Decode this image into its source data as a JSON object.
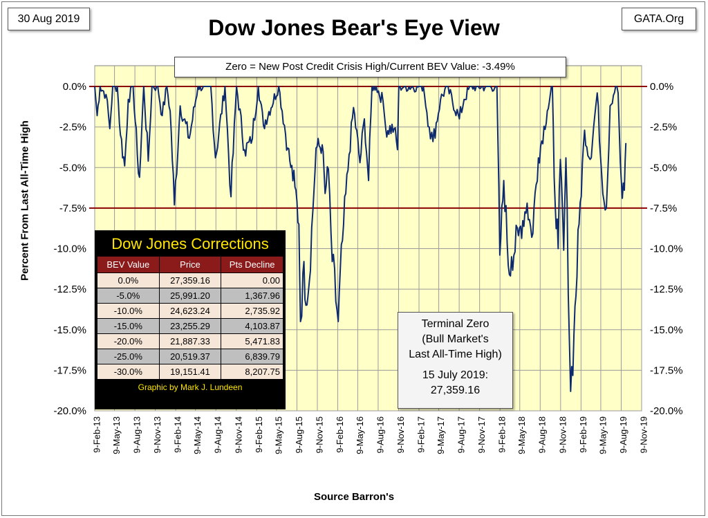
{
  "header": {
    "date": "30 Aug 2019",
    "source": "GATA.Org",
    "title": "Dow Jones Bear's Eye View",
    "subtitle": "Zero = New Post Credit Crisis High/Current BEV Value:  -3.49%"
  },
  "corrections_table": {
    "title": "Dow Jones Corrections",
    "columns": [
      "BEV Value",
      "Price",
      "Pts Decline"
    ],
    "rows": [
      [
        "0.0%",
        "27,359.16",
        "0.00"
      ],
      [
        "-5.0%",
        "25,991.20",
        "1,367.96"
      ],
      [
        "-10.0%",
        "24,623.24",
        "2,735.92"
      ],
      [
        "-15.0%",
        "23,255.29",
        "4,103.87"
      ],
      [
        "-20.0%",
        "21,887.33",
        "5,471.83"
      ],
      [
        "-25.0%",
        "20,519.37",
        "6,839.79"
      ],
      [
        "-30.0%",
        "19,151.41",
        "8,207.75"
      ]
    ],
    "credit": "Graphic by Mark J. Lundeen"
  },
  "terminal_box": {
    "lines": [
      "Terminal Zero",
      "(Bull Market's",
      "Last All-Time High)",
      "15 July 2019:",
      "27,359.16"
    ]
  },
  "chart_data": {
    "type": "line",
    "title": "Dow Jones Bear's Eye View",
    "xlabel": "Source Barron's",
    "ylabel": "Percent From Last All-Time High",
    "ylim": [
      -20,
      0
    ],
    "yticks": [
      "0.0%",
      "-2.5%",
      "-5.0%",
      "-7.5%",
      "-10.0%",
      "-12.5%",
      "-15.0%",
      "-17.5%",
      "-20.0%"
    ],
    "xlim": [
      "2013-02-09",
      "2019-11-09"
    ],
    "xticks": [
      "9-Feb-13",
      "9-May-13",
      "9-Aug-13",
      "9-Nov-13",
      "9-Feb-14",
      "9-May-14",
      "9-Aug-14",
      "9-Nov-14",
      "9-Feb-15",
      "9-May-15",
      "9-Aug-15",
      "9-Nov-15",
      "9-Feb-16",
      "9-May-16",
      "9-Aug-16",
      "9-Nov-16",
      "9-Feb-17",
      "9-May-17",
      "9-Aug-17",
      "9-Nov-17",
      "9-Feb-18",
      "9-May-18",
      "9-Aug-18",
      "9-Nov-18",
      "9-Feb-19",
      "9-May-19",
      "9-Aug-19",
      "9-Nov-19"
    ],
    "reference_lines": [
      0,
      -7.5
    ],
    "grid": true,
    "colors": {
      "line": "#0d2a6e",
      "reference": "#8b0000",
      "plot_bg": "#ffffc8",
      "grid": "#9a9a9a"
    },
    "series": [
      {
        "points": [
          [
            "2013-02-09",
            0
          ],
          [
            "2013-02-20",
            -1.8
          ],
          [
            "2013-03-05",
            0
          ],
          [
            "2013-04-01",
            -0.5
          ],
          [
            "2013-04-18",
            -2.6
          ],
          [
            "2013-05-01",
            0
          ],
          [
            "2013-05-22",
            0
          ],
          [
            "2013-06-05",
            -3
          ],
          [
            "2013-06-24",
            -4.9
          ],
          [
            "2013-07-10",
            -0.8
          ],
          [
            "2013-08-01",
            0
          ],
          [
            "2013-08-20",
            -4.2
          ],
          [
            "2013-08-30",
            -5.6
          ],
          [
            "2013-09-18",
            0
          ],
          [
            "2013-10-08",
            -4.6
          ],
          [
            "2013-10-25",
            0
          ],
          [
            "2013-11-20",
            0
          ],
          [
            "2013-12-10",
            -1.8
          ],
          [
            "2013-12-31",
            0
          ],
          [
            "2014-01-15",
            -1.5
          ],
          [
            "2014-02-03",
            -7.3
          ],
          [
            "2014-03-01",
            -1.2
          ],
          [
            "2014-04-11",
            -3.2
          ],
          [
            "2014-05-20",
            0
          ],
          [
            "2014-07-17",
            0
          ],
          [
            "2014-08-07",
            -4.4
          ],
          [
            "2014-09-19",
            0
          ],
          [
            "2014-10-16",
            -6.8
          ],
          [
            "2014-11-10",
            0
          ],
          [
            "2014-12-16",
            -3.9
          ],
          [
            "2015-01-15",
            -3.5
          ],
          [
            "2015-02-16",
            0
          ],
          [
            "2015-03-11",
            -2.4
          ],
          [
            "2015-05-19",
            0
          ],
          [
            "2015-06-29",
            -3.8
          ],
          [
            "2015-07-08",
            -4.6
          ],
          [
            "2015-07-31",
            -6.2
          ],
          [
            "2015-08-18",
            -8.5
          ],
          [
            "2015-08-25",
            -14.5
          ],
          [
            "2015-09-05",
            -11.5
          ],
          [
            "2015-09-28",
            -12.9
          ],
          [
            "2015-10-20",
            -7.6
          ],
          [
            "2015-11-03",
            -3.8
          ],
          [
            "2015-12-01",
            -3.6
          ],
          [
            "2015-12-14",
            -6.6
          ],
          [
            "2015-12-29",
            -5.1
          ],
          [
            "2016-01-15",
            -10.8
          ],
          [
            "2016-02-11",
            -14.5
          ],
          [
            "2016-03-01",
            -9.5
          ],
          [
            "2016-03-31",
            -4.2
          ],
          [
            "2016-04-20",
            -1.3
          ],
          [
            "2016-05-19",
            -4.7
          ],
          [
            "2016-06-08",
            -2
          ],
          [
            "2016-06-27",
            -5.8
          ],
          [
            "2016-07-12",
            0
          ],
          [
            "2016-07-31",
            0
          ],
          [
            "2016-08-31",
            -0.9
          ],
          [
            "2016-09-12",
            -2.6
          ],
          [
            "2016-10-20",
            -2.6
          ],
          [
            "2016-11-04",
            -3.9
          ],
          [
            "2016-11-10",
            0
          ],
          [
            "2017-02-15",
            0
          ],
          [
            "2017-03-01",
            0
          ],
          [
            "2017-03-27",
            -2.5
          ],
          [
            "2017-04-13",
            -3.4
          ],
          [
            "2017-05-17",
            -0.8
          ],
          [
            "2017-06-15",
            0
          ],
          [
            "2017-08-10",
            -2
          ],
          [
            "2017-08-31",
            -0.8
          ],
          [
            "2017-09-30",
            0
          ],
          [
            "2018-01-26",
            0
          ],
          [
            "2018-02-08",
            -10.4
          ],
          [
            "2018-02-26",
            -5.8
          ],
          [
            "2018-03-23",
            -11.6
          ],
          [
            "2018-04-02",
            -10.5
          ],
          [
            "2018-05-03",
            -9.2
          ],
          [
            "2018-06-11",
            -7.2
          ],
          [
            "2018-07-02",
            -9.3
          ],
          [
            "2018-08-01",
            -4.4
          ],
          [
            "2018-09-10",
            -1.5
          ],
          [
            "2018-10-03",
            0
          ],
          [
            "2018-10-11",
            -5.6
          ],
          [
            "2018-10-29",
            -10
          ],
          [
            "2018-11-08",
            -4.5
          ],
          [
            "2018-11-23",
            -10.1
          ],
          [
            "2018-12-03",
            -4.4
          ],
          [
            "2018-12-24",
            -18.8
          ],
          [
            "2019-01-08",
            -15.3
          ],
          [
            "2019-01-31",
            -8.5
          ],
          [
            "2019-02-25",
            -2.7
          ],
          [
            "2019-03-22",
            -4.5
          ],
          [
            "2019-04-23",
            -0.4
          ],
          [
            "2019-05-13",
            -5.4
          ],
          [
            "2019-06-03",
            -7.5
          ],
          [
            "2019-06-20",
            -1.2
          ],
          [
            "2019-07-15",
            0
          ],
          [
            "2019-07-26",
            -0.4
          ],
          [
            "2019-08-05",
            -4.7
          ],
          [
            "2019-08-14",
            -6.9
          ],
          [
            "2019-08-23",
            -6.4
          ],
          [
            "2019-08-30",
            -3.49
          ]
        ]
      }
    ]
  }
}
